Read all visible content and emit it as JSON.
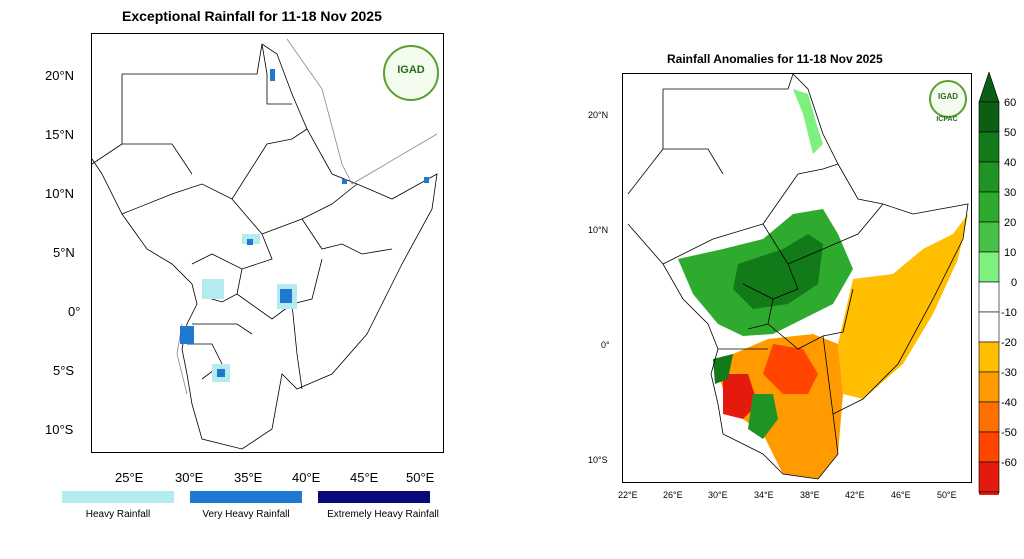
{
  "left_map": {
    "title": "Exceptional Rainfall for 11-18 Nov 2025",
    "logo_text": "IGAD",
    "lat_ticks": [
      "20°N",
      "15°N",
      "10°N",
      "5°N",
      "0°",
      "5°S",
      "10°S"
    ],
    "lon_ticks": [
      "25°E",
      "30°E",
      "35°E",
      "40°E",
      "45°E",
      "50°E"
    ],
    "legend": [
      {
        "label": "Heavy Rainfall",
        "color": "#b3ebef"
      },
      {
        "label": "Very Heavy Rainfall",
        "color": "#1f78d1"
      },
      {
        "label": "Extremely Heavy Rainfall",
        "color": "#0a0a7a"
      }
    ]
  },
  "right_map": {
    "title": "Rainfall Anomalies for 11-18 Nov 2025",
    "logo_text": "IGAD",
    "logo_subtext": "ICPAC",
    "lat_ticks": [
      "20°N",
      "10°N",
      "0°",
      "10°S"
    ],
    "lon_ticks": [
      "22°E",
      "26°E",
      "30°E",
      "34°E",
      "38°E",
      "42°E",
      "46°E",
      "50°E"
    ],
    "colorbar": {
      "labels": [
        "60",
        "50",
        "40",
        "30",
        "20",
        "10",
        "0",
        "-10",
        "-20",
        "-30",
        "-40",
        "-50",
        "-60"
      ],
      "colors": [
        "#0b5e14",
        "#137a1a",
        "#1f9425",
        "#2eaa2e",
        "#46c046",
        "#7ef07e",
        "#ffffff",
        "#ffffff",
        "#ffbf00",
        "#ff9b00",
        "#ff7000",
        "#ff4500",
        "#e51a0f"
      ],
      "top_color": "#0b5e14",
      "bottom_color": "#e51a0f"
    }
  }
}
